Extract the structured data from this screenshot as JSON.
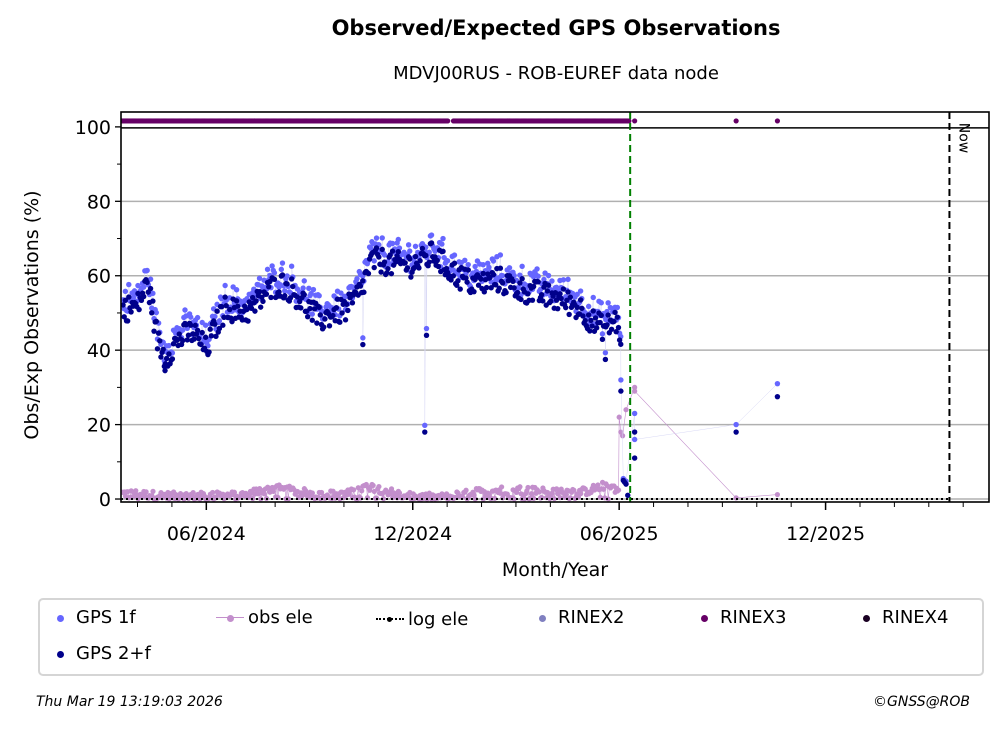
{
  "header": {
    "title": "Observed/Expected GPS Observations",
    "subtitle": "MDVJ00RUS - ROB-EUREF data node"
  },
  "chart_data": {
    "type": "scatter",
    "title": "Observed/Expected GPS Observations",
    "subtitle": "MDVJ00RUS - ROB-EUREF data node",
    "xlabel": "Month/Year",
    "ylabel": "Obs/Exp Observations (%)",
    "x_units": "months since 01/2024",
    "xlim": [
      2.52,
      27.75
    ],
    "ylim": [
      -0.8,
      104
    ],
    "xticks": [
      {
        "value": 5,
        "label": "06/2024"
      },
      {
        "value": 11,
        "label": "12/2024"
      },
      {
        "value": 17,
        "label": "06/2025"
      },
      {
        "value": 23,
        "label": "12/2025"
      }
    ],
    "yticks": [
      {
        "value": 0,
        "label": "0"
      },
      {
        "value": 20,
        "label": "20"
      },
      {
        "value": 40,
        "label": "40"
      },
      {
        "value": 60,
        "label": "60"
      },
      {
        "value": 80,
        "label": "80"
      },
      {
        "value": 100,
        "label": "100"
      }
    ],
    "grid": "y",
    "reference_lines": [
      {
        "name": "rinex-change",
        "x": 17.32,
        "color": "#008000",
        "style": "dashed"
      },
      {
        "name": "now",
        "x": 26.6,
        "color": "#000000",
        "style": "dashed",
        "label": "Now"
      }
    ],
    "series": [
      {
        "name": "GPS 2+f",
        "color": "#00008b",
        "trend_anchors": [
          [
            2.6,
            51
          ],
          [
            3.0,
            52
          ],
          [
            3.3,
            58
          ],
          [
            3.6,
            42
          ],
          [
            3.8,
            38
          ],
          [
            4.2,
            43
          ],
          [
            4.6,
            45
          ],
          [
            5.0,
            40
          ],
          [
            5.3,
            47
          ],
          [
            5.6,
            52
          ],
          [
            5.9,
            50
          ],
          [
            6.3,
            51
          ],
          [
            6.7,
            55
          ],
          [
            7.1,
            58
          ],
          [
            7.5,
            56
          ],
          [
            7.9,
            52
          ],
          [
            8.3,
            48
          ],
          [
            8.7,
            50
          ],
          [
            9.1,
            51
          ],
          [
            9.5,
            56
          ],
          [
            9.8,
            64
          ],
          [
            10.1,
            64
          ],
          [
            10.5,
            63
          ],
          [
            10.9,
            63
          ],
          [
            11.3,
            64
          ],
          [
            11.6,
            66
          ],
          [
            11.9,
            63
          ],
          [
            12.3,
            60
          ],
          [
            12.7,
            58
          ],
          [
            13.1,
            58
          ],
          [
            13.5,
            59
          ],
          [
            13.9,
            57
          ],
          [
            14.3,
            56
          ],
          [
            14.7,
            55
          ],
          [
            15.1,
            54
          ],
          [
            15.5,
            53
          ],
          [
            15.9,
            51
          ],
          [
            16.3,
            47
          ],
          [
            16.6,
            46
          ],
          [
            16.9,
            48
          ],
          [
            17.05,
            44
          ]
        ],
        "outliers": [
          [
            9.55,
            41.5
          ],
          [
            11.35,
            18
          ],
          [
            11.4,
            44
          ],
          [
            16.6,
            37.5
          ],
          [
            3.8,
            34.5
          ]
        ],
        "sparse": [
          [
            17.05,
            29
          ],
          [
            17.12,
            5
          ],
          [
            17.16,
            4.5
          ],
          [
            17.2,
            4
          ],
          [
            17.25,
            1
          ],
          [
            17.45,
            18
          ],
          [
            17.45,
            11
          ],
          [
            20.4,
            18
          ],
          [
            21.6,
            27.5
          ]
        ]
      },
      {
        "name": "GPS 1f",
        "color": "#6666ff",
        "offset_from_2f": 2,
        "sparse": [
          [
            17.05,
            32
          ],
          [
            17.12,
            5.5
          ],
          [
            17.16,
            5
          ],
          [
            17.2,
            4.8
          ],
          [
            17.45,
            23
          ],
          [
            17.45,
            16
          ],
          [
            20.4,
            20
          ],
          [
            21.6,
            31
          ]
        ]
      },
      {
        "name": "obs ele",
        "color": "#c38fcc",
        "trend_anchors": [
          [
            2.6,
            1.5
          ],
          [
            4.0,
            0.8
          ],
          [
            5.0,
            0.8
          ],
          [
            6.0,
            1
          ],
          [
            7.0,
            3
          ],
          [
            8.0,
            1.5
          ],
          [
            9.0,
            1
          ],
          [
            9.7,
            3.5
          ],
          [
            10.3,
            2
          ],
          [
            11.0,
            0.5
          ],
          [
            12.0,
            0.5
          ],
          [
            13.0,
            2
          ],
          [
            14.0,
            2.5
          ],
          [
            15.0,
            2
          ],
          [
            16.0,
            2
          ],
          [
            16.7,
            4
          ],
          [
            17.0,
            2
          ]
        ],
        "sparse": [
          [
            17.0,
            22
          ],
          [
            17.05,
            18
          ],
          [
            17.1,
            17
          ],
          [
            17.2,
            24
          ],
          [
            17.45,
            30
          ],
          [
            17.45,
            29
          ],
          [
            20.4,
            0.3
          ],
          [
            21.6,
            1.2
          ]
        ]
      },
      {
        "name": "log ele",
        "color": "#000000",
        "value": 0
      },
      {
        "name": "RINEX2",
        "color": "#8080c0",
        "x": []
      },
      {
        "name": "RINEX3",
        "color": "#660066",
        "y_value": 101.6,
        "x_range": [
          2.55,
          17.32
        ],
        "extra_x": [
          17.45,
          20.4,
          21.6
        ]
      },
      {
        "name": "RINEX4",
        "color": "#1a0022",
        "x": []
      }
    ]
  },
  "legend": {
    "items": [
      {
        "label": "GPS 1f",
        "color": "#6666ff",
        "kind": "dot"
      },
      {
        "label": "obs ele",
        "color": "#c38fcc",
        "kind": "line-dot"
      },
      {
        "label": "log ele",
        "color": "#000000",
        "kind": "dotted-dot"
      },
      {
        "label": "RINEX2",
        "color": "#8080c0",
        "kind": "dot"
      },
      {
        "label": "RINEX3",
        "color": "#660066",
        "kind": "dot"
      },
      {
        "label": "RINEX4",
        "color": "#1a0022",
        "kind": "dot"
      },
      {
        "label": "GPS 2+f",
        "color": "#00008b",
        "kind": "dot"
      }
    ]
  },
  "footer": {
    "timestamp": "Thu Mar 19 13:19:03 2026",
    "copyright": "©GNSS@ROB"
  }
}
